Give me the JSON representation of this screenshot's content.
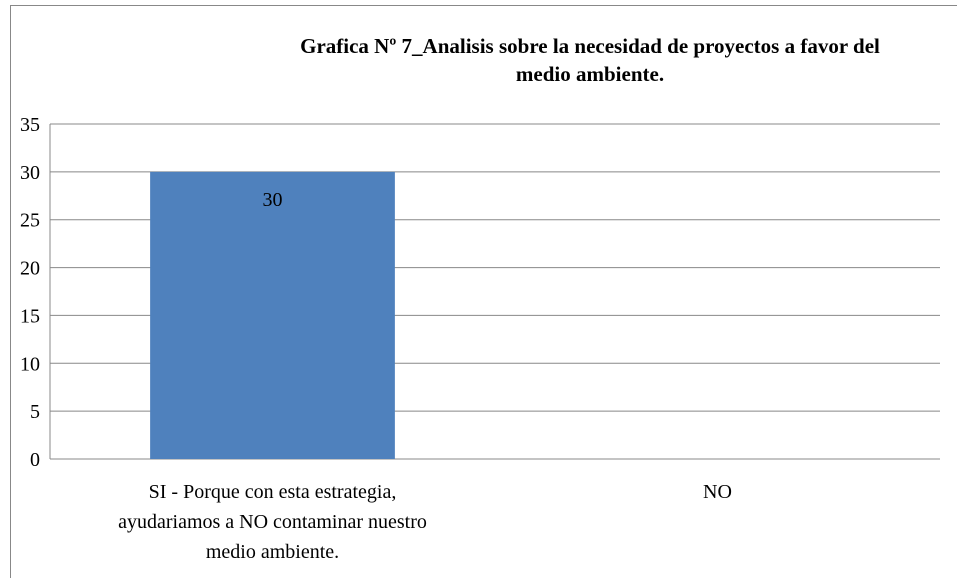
{
  "chart_data": {
    "type": "bar",
    "title": "Grafica Nº 7_Analisis sobre la necesidad de proyectos a favor del medio ambiente.",
    "categories": [
      "SI - Porque con esta estrategia, ayudariamos a NO contaminar nuestro medio ambiente.",
      "NO"
    ],
    "values": [
      30,
      0
    ],
    "value_labels": [
      "30",
      null
    ],
    "color": "#4f81bd",
    "ylim": [
      0,
      35
    ],
    "yticks": [
      0,
      5,
      10,
      15,
      20,
      25,
      30,
      35
    ],
    "grid": true
  }
}
